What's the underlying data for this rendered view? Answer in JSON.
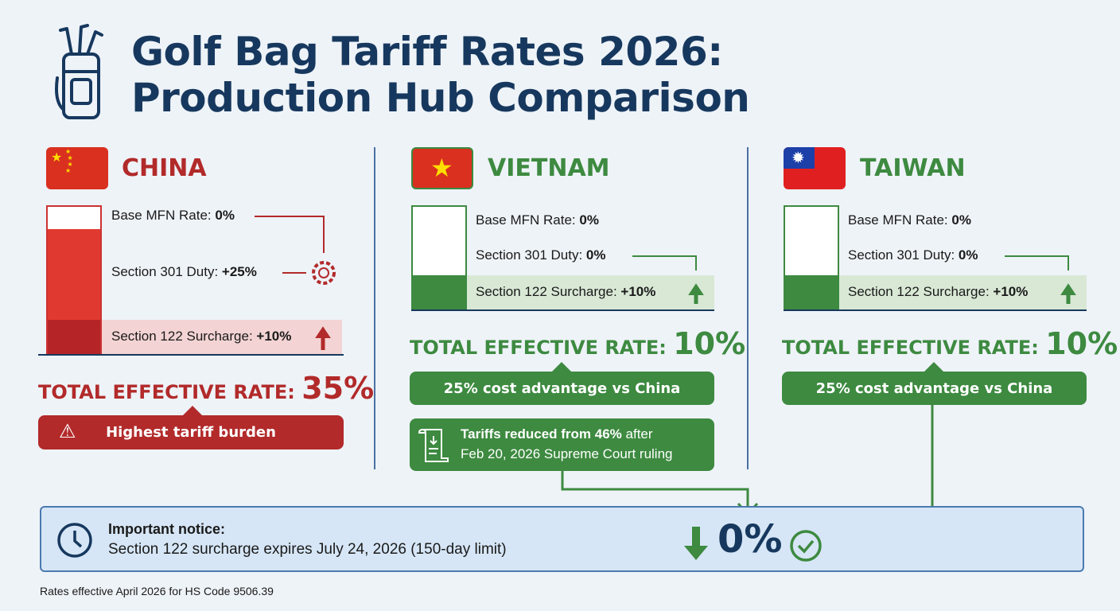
{
  "title": {
    "line1": "Golf Bag Tariff Rates 2026:",
    "line2": "Production Hub Comparison"
  },
  "colors": {
    "navy": "#17385e",
    "red": "#b22a2a",
    "green": "#3d8a40",
    "bg": "#eef3f8"
  },
  "countries": [
    {
      "name": "CHINA",
      "base_label": "Base MFN Rate: ",
      "base_value": "0%",
      "s301_label": "Section 301 Duty: ",
      "s301_value": "+25%",
      "s122_label": "Section 122 Surcharge: ",
      "s122_value": "+10%",
      "total_label": "TOTAL EFFECTIVE RATE: ",
      "total_value": "35%",
      "callout": "Highest tariff burden",
      "bar_percent": {
        "base": 0,
        "s301": 25,
        "s122": 10
      }
    },
    {
      "name": "VIETNAM",
      "base_label": "Base MFN Rate: ",
      "base_value": "0%",
      "s301_label": "Section 301 Duty: ",
      "s301_value": "0%",
      "s122_label": "Section 122 Surcharge: ",
      "s122_value": "+10%",
      "total_label": "TOTAL EFFECTIVE RATE: ",
      "total_value": "10%",
      "callout": "25% cost advantage vs China",
      "note_bold": "Tariffs reduced from 46%",
      "note_rest": " after",
      "note_line2": "Feb 20, 2026 Supreme Court ruling",
      "bar_percent": {
        "base": 0,
        "s301": 0,
        "s122": 10
      }
    },
    {
      "name": "TAIWAN",
      "base_label": "Base MFN Rate: ",
      "base_value": "0%",
      "s301_label": "Section 301 Duty: ",
      "s301_value": "0%",
      "s122_label": "Section 122 Surcharge: ",
      "s122_value": "+10%",
      "total_label": "TOTAL EFFECTIVE RATE: ",
      "total_value": "10%",
      "callout": "25% cost advantage vs China",
      "bar_percent": {
        "base": 0,
        "s301": 0,
        "s122": 10
      }
    }
  ],
  "notice": {
    "heading": "Important notice:",
    "text": "Section 122 surcharge expires July 24, 2026 (150-day limit)",
    "result": "0%"
  },
  "footer": "Rates effective April 2026 for HS Code 9506.39"
}
